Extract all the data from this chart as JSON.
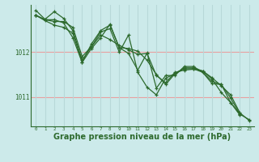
{
  "background_color": "#cceaea",
  "grid_color_h": "#e8a0a0",
  "grid_color_v": "#b8d8d8",
  "line_color": "#2d6a2d",
  "xlabel": "Graphe pression niveau de la mer (hPa)",
  "xlabel_fontsize": 7,
  "xlim": [
    -0.5,
    23.5
  ],
  "ylim": [
    1010.35,
    1013.05
  ],
  "yticks": [
    1011,
    1012
  ],
  "xticks": [
    0,
    1,
    2,
    3,
    4,
    5,
    6,
    7,
    8,
    9,
    10,
    11,
    12,
    13,
    14,
    15,
    16,
    17,
    18,
    19,
    20,
    21,
    22,
    23
  ],
  "series": [
    [
      1012.82,
      1012.72,
      1012.68,
      1012.68,
      1012.55,
      1011.9,
      1012.12,
      1012.38,
      1012.28,
      1012.15,
      1012.05,
      1011.95,
      1011.97,
      1011.48,
      1011.32,
      1011.55,
      1011.6,
      1011.62,
      1011.58,
      1011.43,
      1011.25,
      1011.05,
      1010.65,
      1010.48
    ],
    [
      1012.93,
      1012.73,
      1012.9,
      1012.75,
      1012.48,
      1011.82,
      1012.12,
      1012.45,
      1012.52,
      1012.0,
      1012.38,
      1011.55,
      1011.22,
      1011.05,
      1011.42,
      1011.52,
      1011.65,
      1011.65,
      1011.58,
      1011.4,
      1011.1,
      1010.88,
      1010.6,
      null
    ],
    [
      1012.82,
      1012.7,
      1012.6,
      1012.55,
      1012.42,
      1011.78,
      1012.18,
      1012.48,
      1012.6,
      1012.1,
      1012.08,
      1012.02,
      1011.82,
      1011.5,
      1011.28,
      1011.52,
      1011.63,
      1011.63,
      1011.55,
      1011.35,
      1011.28,
      1010.98,
      1010.62,
      null
    ],
    [
      1012.82,
      1012.72,
      1012.72,
      1012.65,
      1012.32,
      1011.77,
      1012.08,
      1012.32,
      1012.62,
      1012.1,
      1011.97,
      1011.6,
      1011.98,
      1011.2,
      1011.48,
      1011.48,
      1011.68,
      1011.68,
      1011.55,
      1011.3,
      1011.28,
      1010.88,
      1010.62,
      1010.5
    ]
  ]
}
